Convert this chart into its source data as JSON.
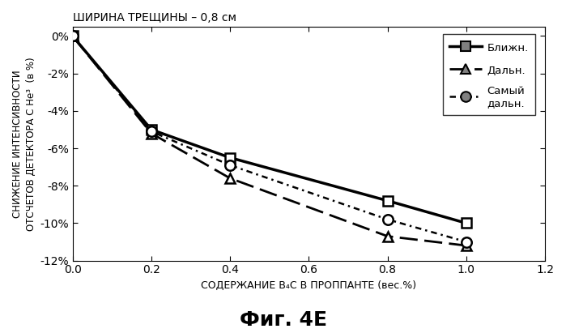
{
  "title": "ШИРИНА ТРЕЩИНЫ – 0,8 см",
  "xlabel": "СОДЕРЖАНИЕ B₄C В ПРОППАНТЕ (вес.%)",
  "ylabel": "СНИЖЕНИЕ ИНТЕНСИВНОСТИ\nОТСЧЕТОВ ДЕТЕКТОРА С He³  (в %)",
  "fig_label": "Фиг. 4Е",
  "xlim": [
    0,
    1.2
  ],
  "ylim": [
    -12,
    0.5
  ],
  "xticks": [
    0.0,
    0.2,
    0.4,
    0.6,
    0.8,
    1.0,
    1.2
  ],
  "yticks": [
    0,
    -2,
    -4,
    -6,
    -8,
    -10,
    -12
  ],
  "ytick_labels": [
    "0%",
    "-2%",
    "-4%",
    "-6%",
    "-8%",
    "-10%",
    "-12%"
  ],
  "series": [
    {
      "label": "Ближн.",
      "x": [
        0.0,
        0.2,
        0.4,
        0.8,
        1.0
      ],
      "y": [
        0.0,
        -5.0,
        -6.5,
        -8.8,
        -10.0
      ],
      "linestyle": "solid",
      "linewidth": 2.5,
      "marker": "s",
      "color": "black"
    },
    {
      "label": "Дальн.",
      "x": [
        0.0,
        0.2,
        0.4,
        0.8,
        1.0
      ],
      "y": [
        0.0,
        -5.2,
        -7.6,
        -10.7,
        -11.2
      ],
      "linestyle": "dashed",
      "linewidth": 2.0,
      "marker": "^",
      "color": "black"
    },
    {
      "label": "Самый\nдальн.",
      "x": [
        0.0,
        0.2,
        0.4,
        0.8,
        1.0
      ],
      "y": [
        0.0,
        -5.1,
        -6.9,
        -9.8,
        -11.0
      ],
      "linestyle": "dotted_dash",
      "linewidth": 1.8,
      "marker": "o",
      "color": "black"
    }
  ]
}
